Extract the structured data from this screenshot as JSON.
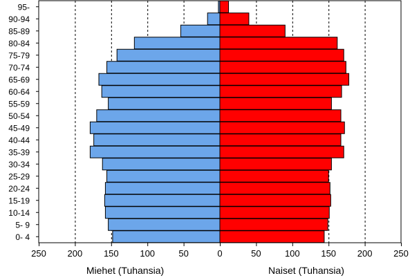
{
  "chart_data": {
    "type": "bar",
    "orientation": "horizontal",
    "layout": "population-pyramid",
    "categories": [
      "0- 4",
      "5- 9",
      "10-14",
      "15-19",
      "20-24",
      "25-29",
      "30-34",
      "35-39",
      "40-44",
      "45-49",
      "50-54",
      "55-59",
      "60-64",
      "65-69",
      "70-74",
      "75-79",
      "80-84",
      "85-89",
      "90-94",
      "95-"
    ],
    "series": [
      {
        "name": "Miehet (Tuhansia)",
        "side": "left",
        "color": "#6ca6ea",
        "values": [
          148,
          154,
          158,
          159,
          158,
          156,
          162,
          179,
          174,
          179,
          170,
          154,
          163,
          167,
          156,
          142,
          118,
          54,
          17,
          2
        ]
      },
      {
        "name": "Naiset (Tuhansia)",
        "side": "right",
        "color": "#ff0000",
        "values": [
          144,
          149,
          151,
          153,
          152,
          150,
          154,
          171,
          167,
          172,
          167,
          154,
          168,
          178,
          174,
          171,
          162,
          90,
          40,
          12
        ]
      }
    ],
    "xlim": [
      -250,
      250
    ],
    "xticks": [
      -250,
      -200,
      -150,
      -100,
      -50,
      0,
      50,
      100,
      150,
      200,
      250
    ],
    "xtick_labels": [
      "250",
      "200",
      "150",
      "100",
      "50",
      "0",
      "50",
      "100",
      "150",
      "200",
      "250"
    ],
    "xlabel_left": "Miehet (Tuhansia)",
    "xlabel_right": "Naiset (Tuhansia)",
    "grid": "vertical-dashed",
    "legend": "none"
  }
}
